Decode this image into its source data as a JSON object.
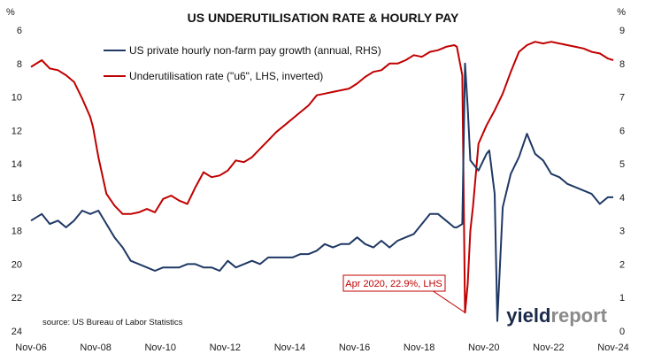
{
  "chart_data": {
    "type": "line",
    "title": "US UNDERUTILISATION RATE & HOURLY PAY",
    "ylabel": "%",
    "y2label": "%",
    "xlim": [
      "2006-11",
      "2024-11"
    ],
    "ylim": [
      6,
      24
    ],
    "y_inverted": true,
    "y2lim": [
      0,
      9
    ],
    "x_tick_labels": [
      "Nov-06",
      "Nov-08",
      "Nov-10",
      "Nov-12",
      "Nov-14",
      "Nov-16",
      "Nov-18",
      "Nov-20",
      "Nov-22",
      "Nov-24"
    ],
    "y_tick_labels": [
      "6",
      "8",
      "10",
      "12",
      "14",
      "16",
      "18",
      "20",
      "22",
      "24"
    ],
    "y2_tick_labels": [
      "0",
      "1",
      "2",
      "3",
      "4",
      "5",
      "6",
      "7",
      "8",
      "9"
    ],
    "grid": false,
    "legend_position": "top",
    "colors": {
      "wages": "#1f3864",
      "u6": "#c00000"
    },
    "series": [
      {
        "name": "US private hourly non-farm pay growth (annual, RHS)",
        "axis": "right",
        "x": [
          "2006-11",
          "2007-03",
          "2007-06",
          "2007-09",
          "2007-12",
          "2008-03",
          "2008-06",
          "2008-09",
          "2008-12",
          "2009-03",
          "2009-06",
          "2009-09",
          "2009-12",
          "2010-03",
          "2010-06",
          "2010-09",
          "2010-12",
          "2011-03",
          "2011-06",
          "2011-09",
          "2011-12",
          "2012-03",
          "2012-06",
          "2012-09",
          "2012-12",
          "2013-03",
          "2013-06",
          "2013-09",
          "2013-12",
          "2014-03",
          "2014-06",
          "2014-09",
          "2014-12",
          "2015-03",
          "2015-06",
          "2015-09",
          "2015-12",
          "2016-03",
          "2016-06",
          "2016-09",
          "2016-12",
          "2017-03",
          "2017-06",
          "2017-09",
          "2017-12",
          "2018-03",
          "2018-06",
          "2018-09",
          "2018-12",
          "2019-03",
          "2019-06",
          "2019-09",
          "2019-12",
          "2020-01",
          "2020-03",
          "2020-04",
          "2020-05",
          "2020-06",
          "2020-09",
          "2020-12",
          "2021-01",
          "2021-03",
          "2021-04",
          "2021-06",
          "2021-09",
          "2021-12",
          "2022-03",
          "2022-06",
          "2022-09",
          "2022-12",
          "2023-03",
          "2023-06",
          "2023-09",
          "2023-12",
          "2024-03",
          "2024-06",
          "2024-09",
          "2024-11"
        ],
        "values": [
          3.3,
          3.5,
          3.2,
          3.3,
          3.1,
          3.3,
          3.6,
          3.5,
          3.6,
          3.2,
          2.8,
          2.5,
          2.1,
          2.0,
          1.9,
          1.8,
          1.9,
          1.9,
          1.9,
          2.0,
          2.0,
          1.9,
          1.9,
          1.8,
          2.1,
          1.9,
          2.0,
          2.1,
          2.0,
          2.2,
          2.2,
          2.2,
          2.2,
          2.3,
          2.3,
          2.4,
          2.6,
          2.5,
          2.6,
          2.6,
          2.8,
          2.6,
          2.5,
          2.7,
          2.5,
          2.7,
          2.8,
          2.9,
          3.2,
          3.5,
          3.5,
          3.3,
          3.1,
          3.1,
          3.2,
          8.0,
          6.7,
          5.1,
          4.8,
          5.3,
          5.4,
          4.1,
          0.3,
          3.7,
          4.7,
          5.2,
          5.9,
          5.3,
          5.1,
          4.7,
          4.6,
          4.4,
          4.3,
          4.2,
          4.1,
          3.8,
          4.0,
          4.0
        ]
      },
      {
        "name": "Underutilisation rate (\"u6\", LHS, inverted)",
        "axis": "left",
        "x": [
          "2006-11",
          "2007-03",
          "2007-06",
          "2007-09",
          "2007-12",
          "2008-03",
          "2008-06",
          "2008-09",
          "2008-10",
          "2008-12",
          "2009-03",
          "2009-06",
          "2009-09",
          "2009-12",
          "2010-03",
          "2010-06",
          "2010-09",
          "2010-12",
          "2011-03",
          "2011-06",
          "2011-09",
          "2011-12",
          "2012-03",
          "2012-06",
          "2012-09",
          "2012-12",
          "2013-03",
          "2013-06",
          "2013-09",
          "2013-12",
          "2014-03",
          "2014-06",
          "2014-09",
          "2014-12",
          "2015-03",
          "2015-06",
          "2015-09",
          "2015-12",
          "2016-03",
          "2016-06",
          "2016-09",
          "2016-12",
          "2017-03",
          "2017-06",
          "2017-09",
          "2017-12",
          "2018-03",
          "2018-06",
          "2018-09",
          "2018-12",
          "2019-03",
          "2019-06",
          "2019-09",
          "2019-12",
          "2020-01",
          "2020-03",
          "2020-04",
          "2020-05",
          "2020-06",
          "2020-07",
          "2020-09",
          "2020-12",
          "2021-03",
          "2021-06",
          "2021-09",
          "2021-12",
          "2022-03",
          "2022-06",
          "2022-09",
          "2022-12",
          "2023-03",
          "2023-06",
          "2023-09",
          "2023-12",
          "2024-03",
          "2024-06",
          "2024-09",
          "2024-11"
        ],
        "values": [
          8.2,
          7.8,
          8.3,
          8.4,
          8.7,
          9.1,
          10.1,
          11.2,
          11.8,
          13.6,
          15.8,
          16.5,
          17.0,
          17.0,
          16.9,
          16.7,
          16.9,
          16.1,
          15.9,
          16.2,
          16.4,
          15.4,
          14.5,
          14.8,
          14.7,
          14.4,
          13.8,
          13.9,
          13.6,
          13.1,
          12.6,
          12.1,
          11.7,
          11.3,
          10.9,
          10.5,
          9.9,
          9.8,
          9.7,
          9.6,
          9.5,
          9.2,
          8.8,
          8.5,
          8.4,
          8.0,
          8.0,
          7.8,
          7.5,
          7.6,
          7.3,
          7.2,
          7.0,
          6.9,
          7.0,
          8.7,
          22.9,
          21.2,
          18.0,
          16.5,
          12.8,
          11.7,
          10.8,
          9.8,
          8.5,
          7.3,
          6.9,
          6.7,
          6.8,
          6.7,
          6.8,
          6.9,
          7.0,
          7.1,
          7.3,
          7.4,
          7.7,
          7.8
        ]
      }
    ],
    "annotation": {
      "text": "Apr 2020, 22.9%, LHS",
      "x": "2020-04",
      "y": 22.9,
      "axis": "left"
    },
    "source": "source: US Bureau of Labor Statistics"
  },
  "brand": {
    "part1": "yield",
    "part2": "report",
    "color1": "#1a2a4a",
    "color2": "#8a8a8a"
  }
}
